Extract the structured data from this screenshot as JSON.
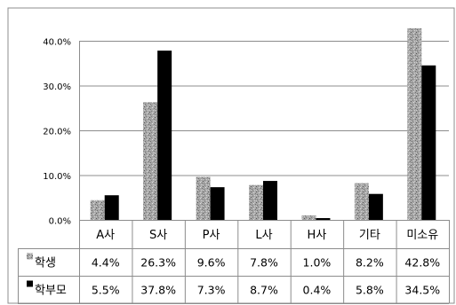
{
  "chart_data": {
    "type": "bar",
    "categories": [
      "A사",
      "S사",
      "P사",
      "L사",
      "H사",
      "기타",
      "미소유"
    ],
    "series": [
      {
        "name": "학생",
        "values": [
          4.4,
          26.3,
          9.6,
          7.8,
          1.0,
          8.2,
          42.8
        ],
        "labels": [
          "4.4%",
          "26.3%",
          "9.6%",
          "7.8%",
          "1.0%",
          "8.2%",
          "42.8%"
        ],
        "color": "#9a9a9a",
        "pattern": "granite-gray"
      },
      {
        "name": "학부모",
        "values": [
          5.5,
          37.8,
          7.3,
          8.7,
          0.4,
          5.8,
          34.5
        ],
        "labels": [
          "5.5%",
          "37.8%",
          "7.3%",
          "8.7%",
          "0.4%",
          "5.8%",
          "34.5%"
        ],
        "color": "#000000",
        "pattern": "solid"
      }
    ],
    "ylim": [
      0,
      40
    ],
    "ytick_values": [
      0,
      10,
      20,
      30,
      40
    ],
    "ytick_labels": [
      "0.0%",
      "10.0%",
      "20.0%",
      "30.0%",
      "40.0%"
    ],
    "grid": true,
    "data_table": true,
    "title": "",
    "xlabel": "",
    "ylabel": ""
  }
}
